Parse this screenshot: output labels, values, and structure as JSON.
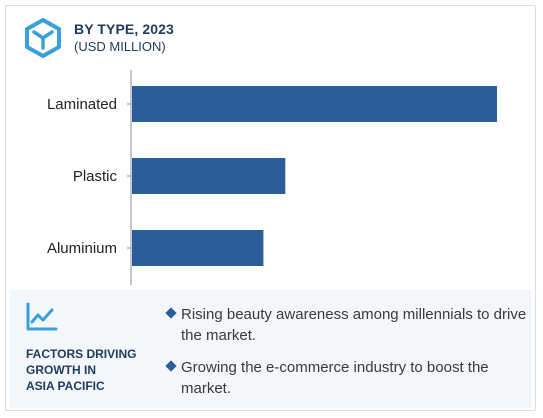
{
  "header": {
    "title": "BY TYPE, 2023",
    "subtitle": "(USD MILLION)"
  },
  "chart_data": {
    "type": "bar",
    "orientation": "horizontal",
    "categories": [
      "Laminated",
      "Plastic",
      "Aluminium"
    ],
    "values": [
      100,
      42,
      36
    ],
    "title": "BY TYPE, 2023",
    "xlabel": "",
    "ylabel": "",
    "grid": false,
    "color": "#2a5d99"
  },
  "factors": {
    "title": "FACTORS DRIVING\nGROWTH IN\nASIA PACIFIC",
    "items": [
      "Rising beauty awareness among millennials to drive the market.",
      "Growing the e-commerce industry to boost the market."
    ]
  },
  "colors": {
    "bar": "#2a5d99",
    "accent": "#3aa0d8",
    "text_dark": "#1f3b5c",
    "footer_bg": "#f3f7fb"
  }
}
